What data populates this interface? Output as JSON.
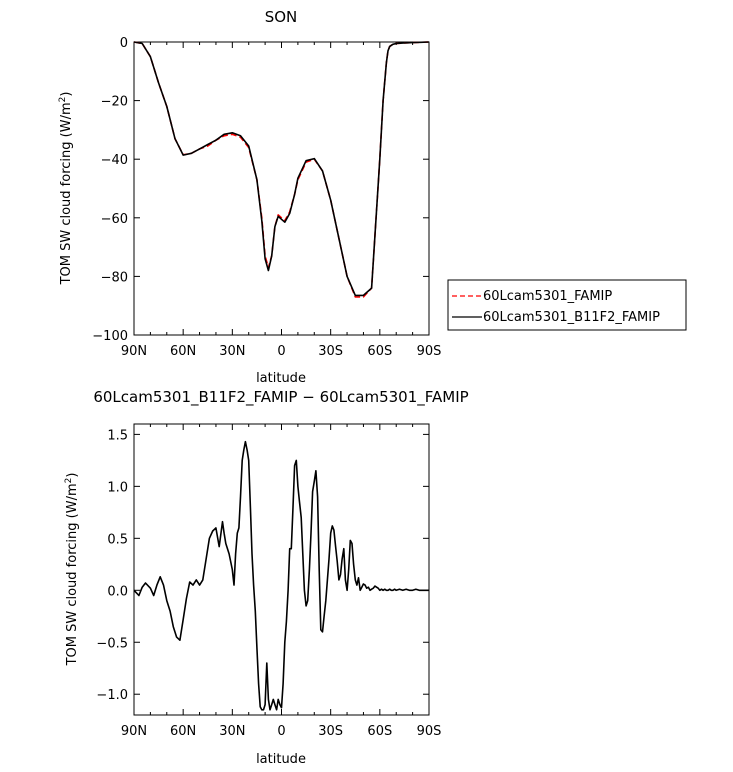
{
  "chart_data": [
    {
      "type": "line",
      "title": "SON",
      "xlabel": "latitude",
      "ylabel": "TOM SW cloud forcing (W/m",
      "ylabel_sup": "2",
      "ylabel_end": ")",
      "xlim": [
        90,
        -90
      ],
      "ylim": [
        -100,
        0
      ],
      "x_ticks": [
        90,
        60,
        30,
        0,
        -30,
        -60,
        -90
      ],
      "x_tick_labels": [
        "90N",
        "60N",
        "30N",
        "0",
        "30S",
        "60S",
        "90S"
      ],
      "y_ticks": [
        0,
        -20,
        -40,
        -60,
        -80,
        -100
      ],
      "y_tick_labels": [
        "0",
        "−20",
        "−40",
        "−60",
        "−80",
        "−100"
      ],
      "grid": false,
      "legend_position": "right",
      "x": [
        90,
        85,
        80,
        75,
        70,
        65,
        60,
        55,
        50,
        45,
        40,
        35,
        30,
        25,
        20,
        15,
        12,
        10,
        8,
        6,
        5,
        4,
        2,
        0,
        -2,
        -5,
        -8,
        -10,
        -15,
        -20,
        -25,
        -30,
        -35,
        -40,
        -45,
        -48,
        -50,
        -55,
        -60,
        -62,
        -64,
        -65,
        -66,
        -68,
        -70,
        -75,
        -80,
        -85,
        -90
      ],
      "series": [
        {
          "name": "60Lcam5301_FAMIP",
          "color": "#ff0000",
          "dash": "dashed",
          "values": [
            0,
            -0.5,
            -5,
            -14,
            -22,
            -33,
            -38.5,
            -38,
            -36.5,
            -35.5,
            -33.5,
            -32,
            -31.5,
            -32.5,
            -36,
            -47,
            -60,
            -73,
            -77,
            -73,
            -68,
            -63,
            -59,
            -60,
            -61,
            -58,
            -52,
            -47,
            -41,
            -40,
            -44,
            -54,
            -67,
            -80,
            -87,
            -87,
            -87,
            -84,
            -40,
            -20,
            -7,
            -3,
            -1.5,
            -0.8,
            -0.5,
            -0.3,
            -0.2,
            -0.1,
            0
          ]
        },
        {
          "name": "60Lcam5301_B11F2_FAMIP",
          "color": "#000000",
          "dash": "solid",
          "values": [
            0,
            -0.5,
            -5,
            -14,
            -22,
            -33,
            -38.6,
            -38,
            -36.5,
            -35,
            -33.5,
            -31.5,
            -31,
            -32,
            -35.5,
            -47,
            -61,
            -74,
            -78,
            -73,
            -68,
            -63,
            -59.5,
            -60.5,
            -61.5,
            -58.5,
            -52,
            -46.5,
            -40.5,
            -39.8,
            -44,
            -54,
            -67,
            -80,
            -86.5,
            -86.5,
            -86.5,
            -84,
            -40,
            -20,
            -7,
            -3,
            -1.5,
            -0.8,
            -0.5,
            -0.3,
            -0.2,
            -0.1,
            0
          ]
        }
      ]
    },
    {
      "type": "line",
      "title": "60Lcam5301_B11F2_FAMIP − 60Lcam5301_FAMIP",
      "xlabel": "latitude",
      "ylabel": "TOM SW cloud forcing (W/m",
      "ylabel_sup": "2",
      "ylabel_end": ")",
      "xlim": [
        90,
        -90
      ],
      "ylim": [
        -1.2,
        1.6
      ],
      "x_ticks": [
        90,
        60,
        30,
        0,
        -30,
        -60,
        -90
      ],
      "x_tick_labels": [
        "90N",
        "60N",
        "30N",
        "0",
        "30S",
        "60S",
        "90S"
      ],
      "y_ticks": [
        1.5,
        1.0,
        0.5,
        0.0,
        -0.5,
        -1.0
      ],
      "y_tick_labels": [
        "1.5",
        "1.0",
        "0.5",
        "0.0",
        "−0.5",
        "−1.0"
      ],
      "grid": false,
      "x": [
        90,
        87,
        85,
        83,
        80,
        78,
        76,
        74,
        72,
        70,
        68,
        66,
        64,
        62,
        60,
        58,
        56,
        54,
        52,
        50,
        48,
        46,
        44,
        42,
        40,
        38,
        36,
        35,
        34,
        32,
        30,
        29,
        28,
        27,
        26,
        25,
        24,
        23,
        22,
        21,
        20,
        19,
        18,
        17,
        16,
        15,
        14,
        13,
        12,
        11,
        10,
        9,
        8,
        7,
        6,
        5,
        4,
        3,
        2,
        1,
        0,
        -1,
        -2,
        -3,
        -4,
        -5,
        -6,
        -7,
        -8,
        -9,
        -10,
        -11,
        -12,
        -13,
        -14,
        -15,
        -16,
        -17,
        -18,
        -19,
        -20,
        -21,
        -22,
        -23,
        -24,
        -25,
        -26,
        -27,
        -28,
        -29,
        -30,
        -31,
        -32,
        -33,
        -34,
        -35,
        -36,
        -37,
        -38,
        -39,
        -40,
        -41,
        -42,
        -43,
        -44,
        -45,
        -46,
        -47,
        -48,
        -49,
        -50,
        -51,
        -52,
        -53,
        -54,
        -55,
        -56,
        -57,
        -58,
        -59,
        -60,
        -61,
        -62,
        -63,
        -64,
        -65,
        -66,
        -67,
        -68,
        -69,
        -70,
        -72,
        -74,
        -76,
        -78,
        -80,
        -82,
        -84,
        -86,
        -88,
        -90
      ],
      "series": [
        {
          "name": "",
          "color": "#000000",
          "dash": "solid",
          "values": [
            0.0,
            -0.05,
            0.03,
            0.07,
            0.02,
            -0.05,
            0.05,
            0.13,
            0.05,
            -0.1,
            -0.2,
            -0.35,
            -0.45,
            -0.48,
            -0.28,
            -0.08,
            0.08,
            0.05,
            0.1,
            0.05,
            0.1,
            0.3,
            0.5,
            0.57,
            0.6,
            0.42,
            0.66,
            0.55,
            0.45,
            0.35,
            0.2,
            0.05,
            0.35,
            0.55,
            0.6,
            0.9,
            1.25,
            1.35,
            1.43,
            1.35,
            1.25,
            0.8,
            0.35,
            0.05,
            -0.2,
            -0.55,
            -0.9,
            -1.12,
            -1.15,
            -1.15,
            -1.1,
            -0.7,
            -1.05,
            -1.15,
            -1.1,
            -1.05,
            -1.1,
            -1.15,
            -1.05,
            -1.1,
            -1.13,
            -0.9,
            -0.5,
            -0.3,
            0.0,
            0.4,
            0.4,
            0.8,
            1.2,
            1.25,
            1.0,
            0.85,
            0.7,
            0.35,
            0.0,
            -0.15,
            -0.1,
            0.2,
            0.55,
            0.95,
            1.05,
            1.15,
            0.9,
            0.2,
            -0.38,
            -0.4,
            -0.25,
            -0.1,
            0.1,
            0.3,
            0.55,
            0.62,
            0.58,
            0.42,
            0.28,
            0.1,
            0.15,
            0.3,
            0.4,
            0.1,
            0.0,
            0.2,
            0.48,
            0.45,
            0.25,
            0.1,
            0.05,
            0.12,
            0.0,
            0.03,
            0.06,
            0.05,
            0.02,
            0.03,
            0.0,
            0.01,
            0.02,
            0.04,
            0.03,
            0.02,
            0.0,
            0.01,
            0.0,
            0.01,
            0.0,
            0.0,
            0.01,
            0.0,
            0.0,
            0.01,
            0.0,
            0.01,
            0.0,
            0.01,
            0.0,
            0.0,
            0.01,
            0.0,
            0.0,
            0.0,
            0.0
          ]
        }
      ]
    }
  ]
}
